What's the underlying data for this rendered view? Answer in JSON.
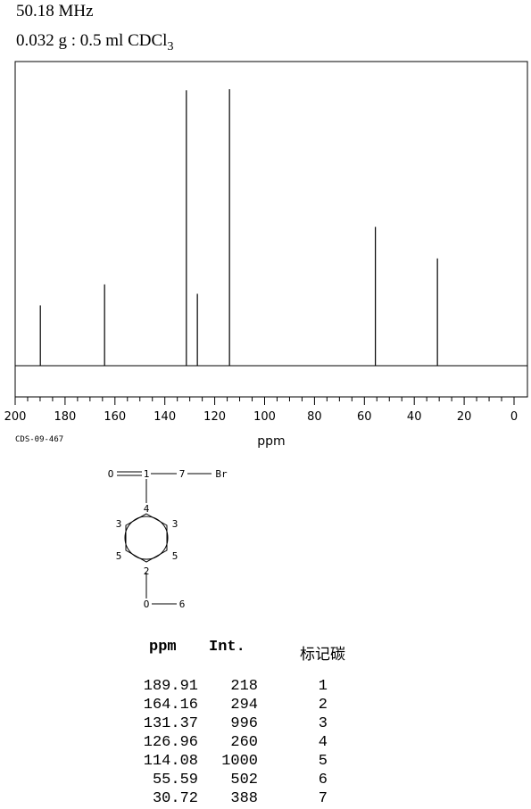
{
  "header": {
    "frequency": "50.18 MHz",
    "sample_prefix": "0.032 g : 0.5 ml CDCl",
    "sample_subscript": "3"
  },
  "catalog_id": "CDS-09-467",
  "chart_data": {
    "type": "line",
    "xlabel": "ppm",
    "xlim": [
      200,
      0
    ],
    "x_ticks": [
      200,
      180,
      160,
      140,
      120,
      100,
      80,
      60,
      40,
      20,
      0
    ],
    "y_max": 1000,
    "peaks": [
      {
        "ppm": 189.91,
        "intensity": 218
      },
      {
        "ppm": 164.16,
        "intensity": 294
      },
      {
        "ppm": 131.37,
        "intensity": 996
      },
      {
        "ppm": 126.96,
        "intensity": 260
      },
      {
        "ppm": 114.08,
        "intensity": 1000
      },
      {
        "ppm": 55.59,
        "intensity": 502
      },
      {
        "ppm": 30.72,
        "intensity": 388
      }
    ],
    "grid": false
  },
  "structure": {
    "atoms": {
      "o_carbonyl": "O",
      "c1": "1",
      "c7": "7",
      "br": "Br",
      "c4": "4",
      "c3_left": "3",
      "c3_right": "3",
      "c5_left": "5",
      "c5_right": "5",
      "c2": "2",
      "o_ether": "O",
      "c6": "6"
    }
  },
  "table": {
    "headers": {
      "ppm": "ppm",
      "int": "Int.",
      "assign": "标记碳"
    },
    "rows": [
      {
        "ppm": "189.91",
        "int": "218",
        "assign": "1"
      },
      {
        "ppm": "164.16",
        "int": "294",
        "assign": "2"
      },
      {
        "ppm": "131.37",
        "int": "996",
        "assign": "3"
      },
      {
        "ppm": "126.96",
        "int": "260",
        "assign": "4"
      },
      {
        "ppm": "114.08",
        "int": "1000",
        "assign": "5"
      },
      {
        "ppm": "55.59",
        "int": "502",
        "assign": "6"
      },
      {
        "ppm": "30.72",
        "int": "388",
        "assign": "7"
      }
    ]
  }
}
